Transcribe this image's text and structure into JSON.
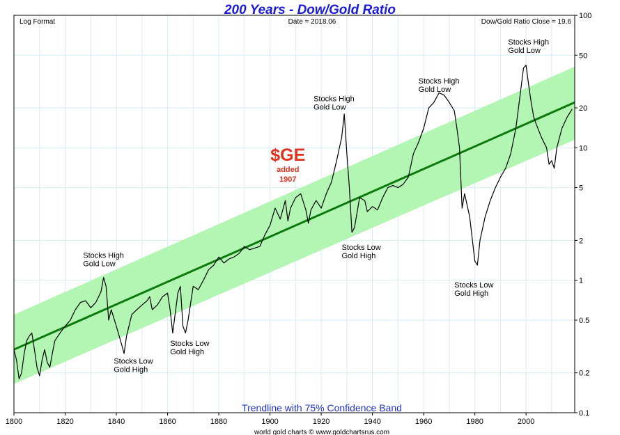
{
  "chart_data": {
    "type": "line",
    "title": "200 Years - Dow/Gold Ratio",
    "header_left": "Log Format",
    "header_center": "Date = 2018.06",
    "header_right": "Dow/Gold Ratio Close = 19.6",
    "caption": "Trendline with 75% Confidence Band",
    "credit": "world gold charts © www.goldchartsrus.com",
    "y_scale": "log",
    "xlim": [
      1800,
      2019
    ],
    "ylim": [
      0.1,
      100
    ],
    "x_ticks": [
      "1800",
      "1820",
      "1840",
      "1860",
      "1880",
      "1900",
      "1920",
      "1940",
      "1960",
      "1980",
      "2000"
    ],
    "x_tick_values": [
      1800,
      1820,
      1840,
      1860,
      1880,
      1900,
      1920,
      1940,
      1960,
      1980,
      2000
    ],
    "y_ticks": [
      "100",
      "50",
      "20",
      "10",
      "5",
      "2",
      "1",
      "0.5",
      "0.2",
      "0.1"
    ],
    "y_tick_values": [
      100,
      50,
      20,
      10,
      5,
      2,
      1,
      0.5,
      0.2,
      0.1
    ],
    "grid": true,
    "colors": {
      "band": "#b3f5b3",
      "trendline": "#0a7a0a",
      "series": "#000000",
      "title": "#1a1adb",
      "ge": "#e0301e",
      "caption": "#2233cc",
      "grid": "#d6eef5"
    },
    "trendline": {
      "x": [
        1800,
        2019
      ],
      "y": [
        0.3,
        22
      ]
    },
    "band": {
      "upper": [
        0.55,
        41
      ],
      "lower": [
        0.165,
        11.5
      ]
    },
    "series": [
      {
        "values_x": [
          1800,
          1801,
          1802,
          1803,
          1804,
          1805,
          1806,
          1807,
          1808,
          1809,
          1810,
          1811,
          1812,
          1813,
          1814,
          1815,
          1816,
          1818,
          1820,
          1822,
          1824,
          1826,
          1828,
          1830,
          1832,
          1834,
          1835,
          1836,
          1837,
          1838,
          1840,
          1842,
          1843,
          1844,
          1846,
          1848,
          1850,
          1852,
          1853,
          1854,
          1856,
          1858,
          1860,
          1861,
          1862,
          1864,
          1865,
          1866,
          1867,
          1868,
          1870,
          1872,
          1874,
          1876,
          1878,
          1880,
          1882,
          1884,
          1886,
          1888,
          1890,
          1892,
          1894,
          1896,
          1898,
          1900,
          1902,
          1904,
          1906,
          1907,
          1908,
          1910,
          1912,
          1914,
          1915,
          1916,
          1918,
          1920,
          1922,
          1924,
          1926,
          1928,
          1929,
          1930,
          1931,
          1932,
          1933,
          1935,
          1937,
          1938,
          1940,
          1942,
          1944,
          1946,
          1948,
          1950,
          1952,
          1954,
          1956,
          1958,
          1960,
          1962,
          1964,
          1966,
          1968,
          1970,
          1972,
          1973,
          1974,
          1975,
          1976,
          1978,
          1980,
          1981,
          1982,
          1984,
          1986,
          1988,
          1990,
          1992,
          1994,
          1996,
          1998,
          1999,
          2000,
          2001,
          2002,
          2003,
          2004,
          2006,
          2008,
          2009,
          2010,
          2011,
          2012,
          2014,
          2016,
          2018
        ],
        "values_y": [
          0.3,
          0.25,
          0.18,
          0.2,
          0.28,
          0.35,
          0.38,
          0.4,
          0.3,
          0.22,
          0.19,
          0.25,
          0.3,
          0.24,
          0.22,
          0.28,
          0.35,
          0.4,
          0.45,
          0.5,
          0.6,
          0.68,
          0.7,
          0.62,
          0.68,
          0.82,
          1.05,
          0.9,
          0.5,
          0.6,
          0.45,
          0.33,
          0.28,
          0.38,
          0.55,
          0.6,
          0.65,
          0.7,
          0.75,
          0.6,
          0.65,
          0.75,
          0.8,
          0.6,
          0.4,
          0.8,
          0.9,
          0.45,
          0.4,
          0.5,
          0.9,
          0.85,
          1.0,
          1.2,
          1.3,
          1.5,
          1.35,
          1.45,
          1.5,
          1.6,
          1.8,
          1.7,
          1.75,
          1.8,
          2.2,
          2.6,
          3.5,
          2.9,
          4.0,
          2.8,
          3.5,
          4.2,
          4.5,
          3.4,
          2.7,
          3.4,
          4.0,
          3.5,
          4.5,
          5.5,
          8.0,
          12.0,
          18.0,
          9.0,
          5.0,
          2.3,
          2.5,
          4.2,
          4.0,
          3.3,
          3.6,
          3.4,
          4.2,
          5.0,
          5.2,
          5.0,
          5.3,
          6.0,
          9.0,
          11.0,
          14.0,
          20.0,
          22.0,
          26.0,
          25.0,
          22.0,
          19.0,
          14.0,
          10.0,
          3.5,
          4.5,
          3.0,
          1.4,
          1.3,
          2.0,
          3.0,
          4.0,
          5.0,
          6.0,
          7.0,
          9.0,
          14.0,
          28.0,
          40.0,
          42.0,
          30.0,
          22.0,
          17.0,
          15.0,
          12.0,
          10.0,
          7.5,
          8.0,
          7.0,
          10.0,
          14.0,
          17.0,
          19.6
        ]
      }
    ],
    "annotations": [
      {
        "lines": [
          "Stocks High",
          "Gold Low"
        ],
        "x": 1827,
        "y": 1.48
      },
      {
        "lines": [
          "Stocks Low",
          "Gold High"
        ],
        "x": 1839,
        "y": 0.235
      },
      {
        "lines": [
          "Stocks Low",
          "Gold High"
        ],
        "x": 1861,
        "y": 0.32
      },
      {
        "lines": [
          "Stocks High",
          "Gold Low"
        ],
        "x": 1917,
        "y": 22.5
      },
      {
        "lines": [
          "Stocks Low",
          "Gold High"
        ],
        "x": 1928,
        "y": 1.7
      },
      {
        "lines": [
          "Stocks High",
          "Gold Low"
        ],
        "x": 1958,
        "y": 30.5
      },
      {
        "lines": [
          "Stocks Low",
          "Gold High"
        ],
        "x": 1972,
        "y": 0.88
      },
      {
        "lines": [
          "Stocks High",
          "Gold Low"
        ],
        "x": 1993,
        "y": 60
      }
    ],
    "ge_annotation": {
      "main": "$GE",
      "line1": "added",
      "line2": "1907",
      "x": 1907,
      "y": 8.0
    }
  }
}
